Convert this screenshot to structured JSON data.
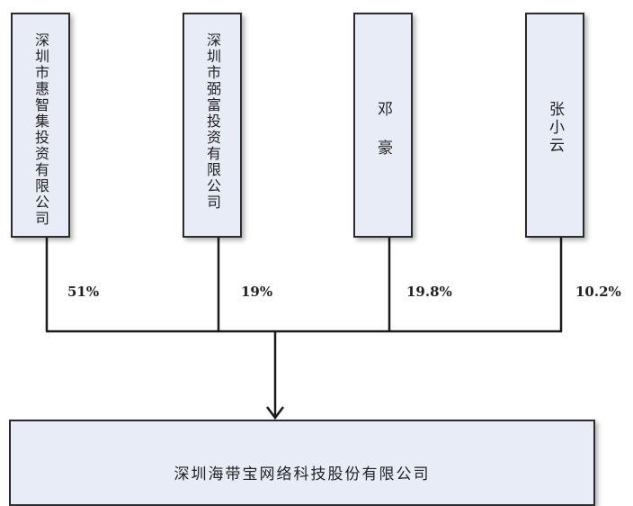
{
  "shareholders": [
    {
      "name": "深圳市惠智集投资有限公司",
      "share": "51%"
    },
    {
      "name": "深圳市弼富投资有限公司",
      "share": "19%"
    },
    {
      "name": "邓豪",
      "share": "19.8%"
    },
    {
      "name": "张小云",
      "share": "10.2%"
    }
  ],
  "company": {
    "name": "深圳海带宝网络科技股份有限公司"
  }
}
